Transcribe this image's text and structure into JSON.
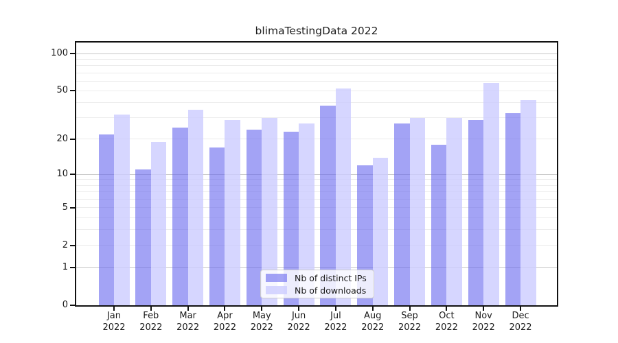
{
  "figure": {
    "background": "#ffffff"
  },
  "chart_data": {
    "type": "bar",
    "title": "blimaTestingData 2022",
    "categories": [
      "Jan 2022",
      "Feb 2022",
      "Mar 2022",
      "Apr 2022",
      "May 2022",
      "Jun 2022",
      "Jul 2022",
      "Aug 2022",
      "Sep 2022",
      "Oct 2022",
      "Nov 2022",
      "Dec 2022"
    ],
    "series": [
      {
        "name": "Nb of distinct IPs",
        "color": "#6666EE",
        "alpha": 0.6,
        "values": [
          22,
          11,
          25,
          17,
          24,
          23,
          38,
          12,
          27,
          18,
          29,
          33
        ]
      },
      {
        "name": "Nb of downloads",
        "color": "#CCCCFF",
        "alpha": 0.8,
        "values": [
          32,
          19,
          35,
          29,
          30,
          27,
          52,
          14,
          30,
          30,
          58,
          42
        ]
      }
    ],
    "xlabel": "",
    "ylabel": "",
    "yscale": "log1p",
    "ylim": [
      0,
      122
    ],
    "y_tick_labels": [
      100,
      50,
      20,
      10,
      5,
      2,
      1,
      0
    ],
    "y_major_gridlines": [
      1,
      10,
      100
    ],
    "y_minor_gridlines": [
      2,
      3,
      4,
      5,
      6,
      7,
      8,
      9,
      20,
      30,
      40,
      50,
      60,
      70,
      80,
      90
    ],
    "grid": true,
    "legend_position": "lower center"
  },
  "legend": {
    "items": [
      {
        "label": "Nb of distinct IPs"
      },
      {
        "label": "Nb of downloads"
      }
    ]
  },
  "colors": {
    "major_gridline": "#c6c6c6",
    "minor_gridline": "#ececec",
    "axis": "#111111",
    "text": "#1a1a1a",
    "legend_border": "#cccccc",
    "legend_background": "#ffffff"
  }
}
